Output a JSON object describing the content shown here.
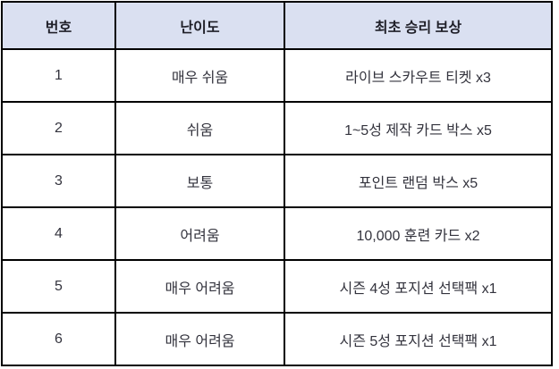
{
  "table": {
    "columns": [
      {
        "label": "번호"
      },
      {
        "label": "난이도"
      },
      {
        "label": "최초 승리 보상"
      }
    ],
    "rows": [
      {
        "no": "1",
        "difficulty": "매우 쉬움",
        "reward": "라이브 스카우트 티켓 x3"
      },
      {
        "no": "2",
        "difficulty": "쉬움",
        "reward": "1~5성 제작 카드 박스 x5"
      },
      {
        "no": "3",
        "difficulty": "보통",
        "reward": "포인트 랜덤 박스 x5"
      },
      {
        "no": "4",
        "difficulty": "어려움",
        "reward": "10,000 훈련 카드 x2"
      },
      {
        "no": "5",
        "difficulty": "매우 어려움",
        "reward": "시즌 4성 포지션 선택팩 x1"
      },
      {
        "no": "6",
        "difficulty": "매우 어려움",
        "reward": "시즌 5성 포지션 선택팩 x1"
      }
    ],
    "colors": {
      "header_bg": "#dae0f1",
      "border": "#000000",
      "header_text": "#1f1f28",
      "body_text": "#33333d",
      "row_bg": "#ffffff"
    }
  }
}
